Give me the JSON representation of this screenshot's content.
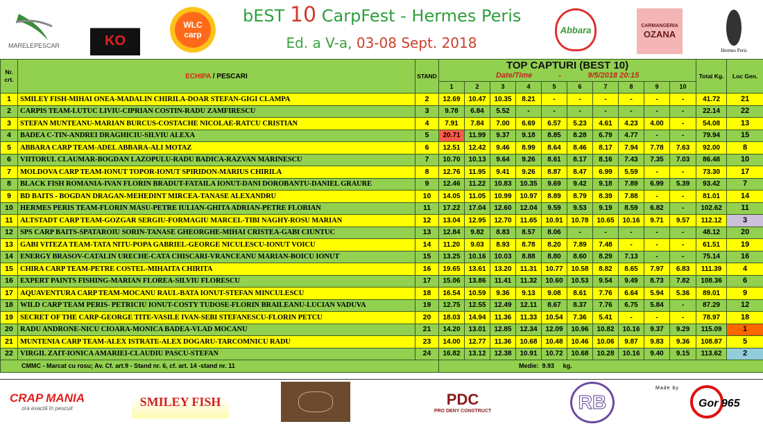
{
  "header": {
    "title_prefix": "bEST",
    "title_ten": "10",
    "title_suffix": "CarpFest - Hermes Peris",
    "edition_prefix": "Ed. a V-a,",
    "edition_dates": "03-08 Sept. 2018",
    "logos": {
      "marele_pescar": "MARELEPESCAR",
      "ko": "KO",
      "wlc": "WLC carp",
      "abbara": "Abbara",
      "ozana_top": "CARMANGERIA",
      "ozana": "OZANA",
      "hermes": "Hermes Peris"
    }
  },
  "table": {
    "col_nr": "Nr. crt.",
    "col_echipa": "ECHIPA",
    "col_sep": " / ",
    "col_pescari": "PESCARI",
    "col_stand": "STAND",
    "top_title": "TOP CAPTURI (BEST 10)",
    "date_label": "Date/Time",
    "date_sep": "-",
    "date_value": "9/5/2018 20:15",
    "catch_cols": [
      "1",
      "2",
      "3",
      "4",
      "5",
      "6",
      "7",
      "8",
      "9",
      "10"
    ],
    "col_total": "Total Kg.",
    "col_loc": "Loc Gen.",
    "colors": {
      "green": "#92d050",
      "yellow": "#ffff00",
      "record_red": "#ff5b4b",
      "place1": "#ff6600",
      "place2": "#92cddc",
      "place3": "#ccc0da"
    },
    "rows": [
      {
        "nr": "1",
        "name": "SMILEY FISH-MIHAI ONEA-MADALIN CHIRILA-DOAR STEFAN-GIGI CLAMPA",
        "stand": "2",
        "catches": [
          "12.69",
          "10.47",
          "10.35",
          "8.21",
          "-",
          "-",
          "-",
          "-",
          "-",
          "-"
        ],
        "total": "41.72",
        "loc": "21"
      },
      {
        "nr": "2",
        "name": "CARPIS TEAM-LUTUC LIVIU-CIPRIAN COSTIN-RADU ZAMFIRESCU",
        "stand": "3",
        "catches": [
          "9.78",
          "6.84",
          "5.52",
          "-",
          "-",
          "-",
          "-",
          "-",
          "-",
          "-"
        ],
        "total": "22.14",
        "loc": "22"
      },
      {
        "nr": "3",
        "name": "STEFAN MUNTEANU-MARIAN BURCUS-COSTACHE NICOLAE-RATCU CRISTIAN",
        "stand": "4",
        "catches": [
          "7.91",
          "7.84",
          "7.00",
          "6.69",
          "6.57",
          "5.23",
          "4.61",
          "4.23",
          "4.00",
          "-"
        ],
        "total": "54.08",
        "loc": "13"
      },
      {
        "nr": "4",
        "name": "BADEA C-TIN-ANDREI DRAGHICIU-SILVIU ALEXA",
        "stand": "5",
        "catches": [
          "20.71",
          "11.99",
          "9.37",
          "9.18",
          "8.85",
          "8.28",
          "6.79",
          "4.77",
          "-",
          "-"
        ],
        "total": "79.94",
        "loc": "15",
        "record": 0
      },
      {
        "nr": "5",
        "name": "ABBARA  CARP TEAM-ADEL ABBARA-ALI MOTAZ",
        "stand": "6",
        "catches": [
          "12.51",
          "12.42",
          "9.46",
          "8.99",
          "8.64",
          "8.46",
          "8.17",
          "7.94",
          "7.78",
          "7.63"
        ],
        "total": "92.00",
        "loc": "8"
      },
      {
        "nr": "6",
        "name": "VIITORUL CLAUMAR-BOGDAN LAZOPULU-RADU BADICA-RAZVAN MARINESCU",
        "stand": "7",
        "catches": [
          "10.70",
          "10.13",
          "9.64",
          "9.26",
          "8.61",
          "8.17",
          "8.16",
          "7.43",
          "7.35",
          "7.03"
        ],
        "total": "86.48",
        "loc": "10"
      },
      {
        "nr": "7",
        "name": "MOLDOVA CARP TEAM-IONUT TOPOR-IONUT SPIRIDON-MARIUS CHIRILA",
        "stand": "8",
        "catches": [
          "12.76",
          "11.95",
          "9.41",
          "9.26",
          "8.87",
          "8.47",
          "6.99",
          "5.59",
          "-",
          "-"
        ],
        "total": "73.30",
        "loc": "17"
      },
      {
        "nr": "8",
        "name": "BLACK FISH ROMANIA-IVAN FLORIN BRADUT-FATAILA IONUT-DANI DOROBANTU-DANIEL GRAURE",
        "stand": "9",
        "catches": [
          "12.46",
          "11.22",
          "10.83",
          "10.35",
          "9.69",
          "9.42",
          "9.18",
          "7.89",
          "6.99",
          "5.39"
        ],
        "total": "93.42",
        "loc": "7"
      },
      {
        "nr": "9",
        "name": "BD BAITS - BOGDAN DRAGAN-MEHEDINT MIRCEA-TANASE ALEXANDRU",
        "stand": "10",
        "catches": [
          "14.05",
          "11.05",
          "10.99",
          "10.97",
          "8.89",
          "8.79",
          "8.39",
          "7.88",
          "-",
          "-"
        ],
        "total": "81.01",
        "loc": "14"
      },
      {
        "nr": "10",
        "name": "HERMES PERIS TEAM-FLORIN MASU-PETRE IULIAN-GHITA ADRIAN-PETRE FLORIAN",
        "stand": "11",
        "catches": [
          "17.22",
          "17.04",
          "12.60",
          "12.04",
          "9.59",
          "9.53",
          "9.19",
          "8.59",
          "6.82",
          "-"
        ],
        "total": "102.62",
        "loc": "11"
      },
      {
        "nr": "11",
        "name": "ALTSTADT CARP TEAM-GOZGAR SERGIU-FORMAGIU MARCEL-TIBI NAGHY-ROSU MARIAN",
        "stand": "12",
        "catches": [
          "13.04",
          "12.95",
          "12.70",
          "11.65",
          "10.91",
          "10.78",
          "10.65",
          "10.16",
          "9.71",
          "9.57"
        ],
        "total": "112.12",
        "loc": "3",
        "place": 3
      },
      {
        "nr": "12",
        "name": " SPS CARP BAITS-SPATAROIU SORIN-TANASE GHEORGHE-MIHAI CRISTEA-GABI CIUNTUC",
        "stand": "13",
        "catches": [
          "12.84",
          "9.82",
          "8.83",
          "8.57",
          "8.06",
          "-",
          "-",
          "-",
          "-",
          "-"
        ],
        "total": "48.12",
        "loc": "20"
      },
      {
        "nr": "13",
        "name": "GABI VITEZA TEAM-TATA NITU-POPA GABRIEL-GEORGE NICULESCU-IONUT VOICU",
        "stand": "14",
        "catches": [
          "11.20",
          "9.03",
          "8.93",
          "8.78",
          "8.20",
          "7.89",
          "7.48",
          "-",
          "-",
          "-"
        ],
        "total": "61.51",
        "loc": "19"
      },
      {
        "nr": "14",
        "name": "ENERGY BRASOV-CATALIN URECHE-CATA CHISCARI-VRANCEANU MARIAN-BOICU IONUT",
        "stand": "15",
        "catches": [
          "13.25",
          "10.16",
          "10.03",
          "8.88",
          "8.80",
          "8.60",
          "8.29",
          "7.13",
          "-",
          "-"
        ],
        "total": "75.14",
        "loc": "16"
      },
      {
        "nr": "15",
        "name": "CHIRA CARP TEAM-PETRE COSTEL-MIHAITA CHIRITA",
        "stand": "16",
        "catches": [
          "19.65",
          "13.61",
          "13.20",
          "11.31",
          "10.77",
          "10.58",
          "8.82",
          "8.65",
          "7.97",
          "6.83"
        ],
        "total": "111.39",
        "loc": "4"
      },
      {
        "nr": "16",
        "name": "EXPERT PAINTS FISHING-MARIAN FLOREA-SILVIU FLORESCU",
        "stand": "17",
        "catches": [
          "15.06",
          "13.86",
          "11.41",
          "11.32",
          "10.60",
          "10.53",
          "9.54",
          "9.49",
          "8.73",
          "7.82"
        ],
        "total": "108.36",
        "loc": "6"
      },
      {
        "nr": "17",
        "name": "AQUAVENTURA CARP TEAM-MOCANU RAUL-BATA IONUT-STEFAN MINCULESCU",
        "stand": "18",
        "catches": [
          "16.54",
          "10.59",
          "9.36",
          "9.13",
          "9.08",
          "8.61",
          "7.76",
          "6.64",
          "5.94",
          "5.36"
        ],
        "total": "89.01",
        "loc": "9"
      },
      {
        "nr": "18",
        "name": "WILD CARP TEAM PERIS- PETRICIU IONUT-COSTY TUDOSE-FLORIN BRAILEANU-LUCIAN VADUVA",
        "stand": "19",
        "catches": [
          "12.75",
          "12.55",
          "12.49",
          "12.11",
          "8.67",
          "8.37",
          "7.76",
          "6.75",
          "5.84",
          "-"
        ],
        "total": "87.29",
        "loc": "12"
      },
      {
        "nr": "19",
        "name": "SECRET OF THE CARP-GEORGE TITE-VASILE IVAN-SEBI STEFANESCU-FLORIN PETCU",
        "stand": "20",
        "catches": [
          "18.03",
          "14.94",
          "11.36",
          "11.33",
          "10.54",
          "7.36",
          "5.41",
          "-",
          "-",
          "-"
        ],
        "total": "78.97",
        "loc": "18"
      },
      {
        "nr": "20",
        "name": "RADU ANDRONE-NICU CIOARA-MONICA BADEA-VLAD MOCANU",
        "stand": "21",
        "catches": [
          "14.20",
          "13.01",
          "12.85",
          "12.34",
          "12.09",
          "10.96",
          "10.82",
          "10.16",
          "9.37",
          "9.29"
        ],
        "total": "115.09",
        "loc": "1",
        "place": 1
      },
      {
        "nr": "21",
        "name": "MUNTENIA CARP TEAM-ALEX ISTRATE-ALEX DOGARU-TARCOMNICU RADU",
        "stand": "23",
        "catches": [
          "14.00",
          "12.77",
          "11.36",
          "10.68",
          "10.48",
          "10.46",
          "10.06",
          "9.87",
          "9.83",
          "9.36"
        ],
        "total": "108.87",
        "loc": "5"
      },
      {
        "nr": "22",
        "name": "VIRGIL ZAIT-IONICA AMARIEI-CLAUDIU PASCU-STEFAN",
        "stand": "24",
        "catches": [
          "16.82",
          "13.12",
          "12.38",
          "10.91",
          "10.72",
          "10.68",
          "10.28",
          "10.16",
          "9.40",
          "9.15"
        ],
        "total": "113.62",
        "loc": "2",
        "place": 2
      }
    ],
    "footer_note": "CMMC - Marcat cu rosu;  Av. Cf. art.9 - Stand nr. 6, cf. art. 14 -stand  nr. 11",
    "medie_label": "Medie:",
    "medie_value": "9.93",
    "medie_unit": "kg."
  },
  "sponsors": {
    "crap_mania": "CRAP MANIA",
    "crap_mania_tag": "ora exactă în pescuit",
    "smiley_fish": "SMILEY FISH",
    "pdc": "PDC",
    "pdc_sub": "PRO DENY CONSTRUCT",
    "rb": "RB",
    "made_by": "Made by",
    "gor": "Gor 965"
  }
}
